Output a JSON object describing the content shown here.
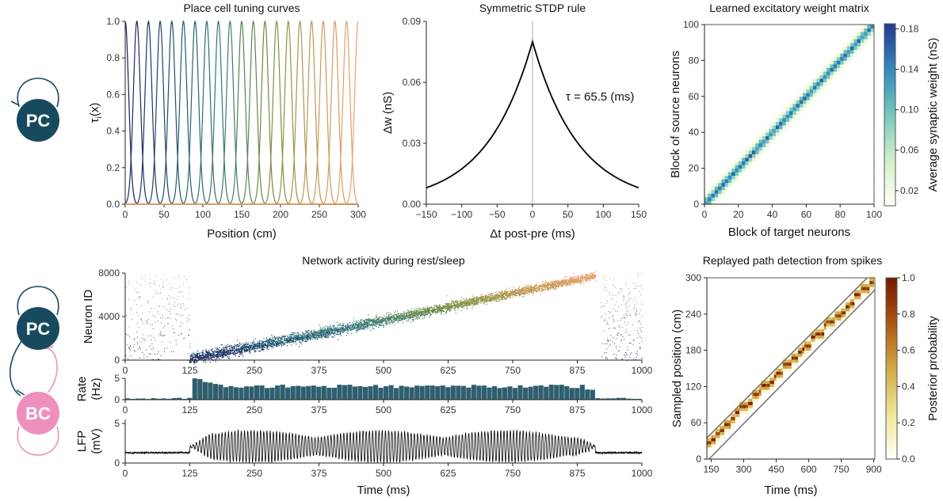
{
  "schematic": {
    "top": {
      "node": "PC"
    },
    "bottom": {
      "node_pc": "PC",
      "node_bc": "BC"
    },
    "colors": {
      "pc": "#174a5e",
      "bc": "#ee90bd"
    }
  },
  "chart_data": [
    {
      "id": "tuning",
      "type": "line",
      "title": "Place cell tuning curves",
      "xlabel": "Position (cm)",
      "ylabel": "τ",
      "ylabel_sub": "i",
      "ylabel_suffix": "(x)",
      "xlim": [
        0,
        300
      ],
      "ylim": [
        0,
        1.0
      ],
      "xticks": [
        "0",
        "50",
        "100",
        "150",
        "200",
        "250",
        "300"
      ],
      "yticks": [
        "0.0",
        "0.2",
        "0.4",
        "0.6",
        "0.8",
        "1.0"
      ],
      "centers_cm": [
        0,
        15,
        30,
        45,
        60,
        75,
        90,
        105,
        120,
        135,
        150,
        165,
        180,
        195,
        210,
        225,
        240,
        255,
        270,
        285,
        300
      ],
      "sigma_cm": 4.5
    },
    {
      "id": "stdp",
      "type": "line",
      "title": "Symmetric STDP rule",
      "xlabel": "Δt post-pre (ms)",
      "ylabel": "Δw (nS)",
      "xlim": [
        -150,
        150
      ],
      "ylim": [
        0,
        0.09
      ],
      "xticks": [
        "−150",
        "−100",
        "−50",
        "0",
        "50",
        "100",
        "150"
      ],
      "yticks": [
        "0.00",
        "0.03",
        "0.06",
        "0.09"
      ],
      "peak_nS": 0.08,
      "tau_ms": 65.5,
      "annotation": "τ = 65.5 (ms)"
    },
    {
      "id": "weights",
      "type": "heatmap",
      "title": "Learned excitatory weight matrix",
      "xlabel": "Block of target neurons",
      "ylabel": "Block of source neurons",
      "xlim": [
        0,
        100
      ],
      "ylim": [
        0,
        100
      ],
      "xticks": [
        "0",
        "20",
        "40",
        "60",
        "80",
        "100"
      ],
      "yticks": [
        "0",
        "20",
        "40",
        "60",
        "80",
        "100"
      ],
      "colorbar_label": "Average synaptic weight (nS)",
      "colorbar_ticks": [
        "0.02",
        "0.06",
        "0.10",
        "0.14",
        "0.18"
      ],
      "diagonal_peak_nS": 0.16,
      "background_nS": 0.0,
      "band_width_blocks": 3
    },
    {
      "id": "raster",
      "type": "scatter",
      "title": "Network activity during rest/sleep",
      "ylabel": "Neuron ID",
      "xlim": [
        0,
        1000
      ],
      "ylim": [
        0,
        8000
      ],
      "xticks": [
        "0",
        "125",
        "250",
        "375",
        "500",
        "625",
        "750",
        "875",
        "1000"
      ],
      "yticks": [
        "0",
        "4000",
        "8000"
      ],
      "sequence_start": {
        "time_ms": 125,
        "neuron": 200
      },
      "sequence_end": {
        "time_ms": 930,
        "neuron": 8000
      }
    },
    {
      "id": "rate",
      "type": "bar",
      "ylabel": "Rate",
      "ylabel2": "(Hz)",
      "xlim": [
        0,
        1000
      ],
      "ylim": [
        0,
        5
      ],
      "xticks": [
        "0",
        "125",
        "250",
        "375",
        "500",
        "625",
        "750",
        "875",
        "1000"
      ],
      "yticks": [
        "0",
        "5"
      ],
      "bin_ms": 10,
      "baseline_hz": 0.3,
      "onset_peak_hz": 5.0,
      "plateau_hz": 3.2
    },
    {
      "id": "lfp",
      "type": "line",
      "ylabel": "LFP",
      "ylabel2": "(mV)",
      "xlabel": "Time (ms)",
      "xlim": [
        0,
        1000
      ],
      "ylim": [
        0,
        5.5
      ],
      "xticks": [
        "0",
        "125",
        "250",
        "375",
        "500",
        "625",
        "750",
        "875",
        "1000"
      ],
      "yticks": [
        "0",
        "5"
      ],
      "baseline_mV": 1.3,
      "ripple_amp_mV": 2.0
    },
    {
      "id": "replay",
      "type": "heatmap",
      "title": "Replayed path detection from spikes",
      "xlabel": "Time (ms)",
      "ylabel": "Sampled position (cm)",
      "xlim": [
        130,
        905
      ],
      "ylim": [
        0,
        300
      ],
      "xticks": [
        "150",
        "300",
        "450",
        "600",
        "750",
        "900"
      ],
      "yticks": [
        "0",
        "60",
        "120",
        "180",
        "240",
        "300"
      ],
      "colorbar_label": "Posterior probability",
      "colorbar_ticks": [
        "0.0",
        "0.2",
        "0.4",
        "0.6",
        "0.8",
        "1.0"
      ],
      "path_start": {
        "time_ms": 130,
        "pos_cm": 25
      },
      "path_end": {
        "time_ms": 900,
        "pos_cm": 295
      },
      "band_lines": [
        [
          [
            130,
            35
          ],
          [
            870,
            300
          ]
        ],
        [
          [
            140,
            0
          ],
          [
            905,
            280
          ]
        ]
      ]
    }
  ]
}
